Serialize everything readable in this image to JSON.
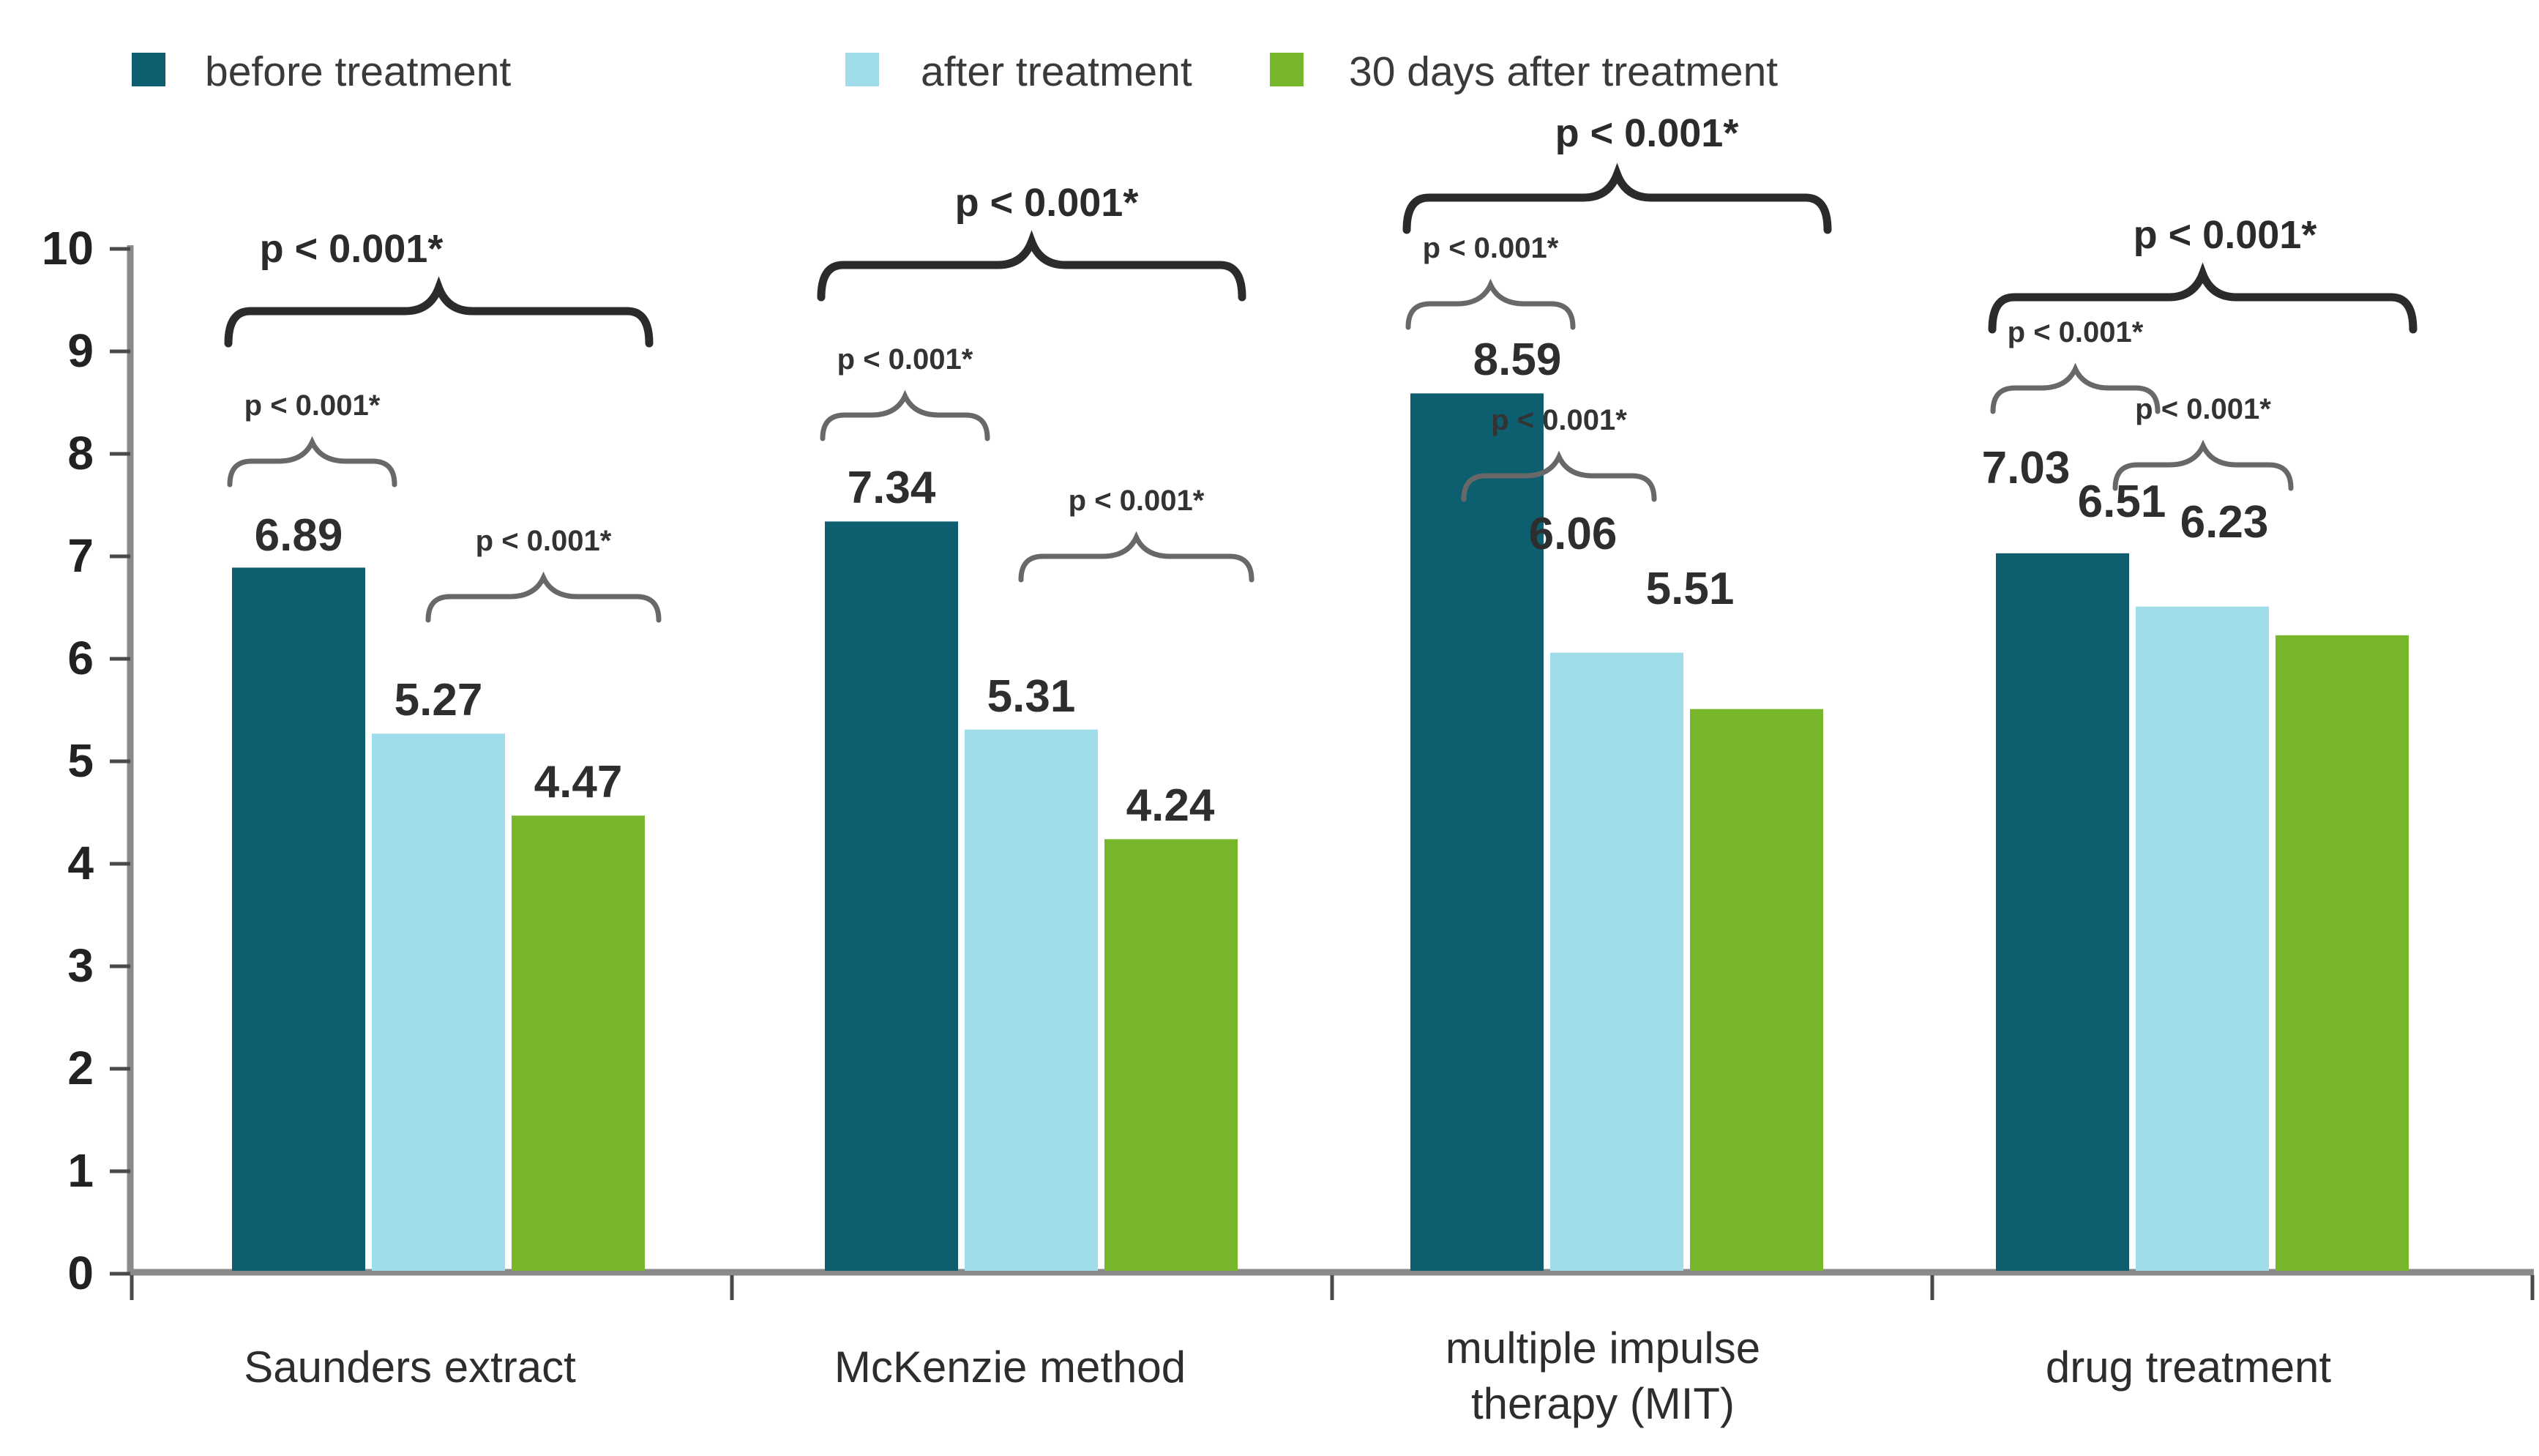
{
  "chart_data": {
    "type": "bar",
    "title": "",
    "categories": [
      "Saunders extract",
      "McKenzie method",
      "multiple impulse therapy (MIT)",
      "drug treatment"
    ],
    "series": [
      {
        "name": "before treatment",
        "color": "#0d5f70",
        "values": [
          6.89,
          7.34,
          8.59,
          7.03
        ]
      },
      {
        "name": "after treatment",
        "color": "#9edde9",
        "values": [
          5.27,
          5.31,
          6.06,
          6.51
        ]
      },
      {
        "name": "30 days after treatment",
        "color": "#78b72c",
        "values": [
          4.47,
          4.24,
          5.51,
          6.23
        ]
      }
    ],
    "ylim": [
      0,
      10
    ],
    "grid": false,
    "legend_position": "top-left",
    "p_annotations": [
      {
        "category": "Saunders extract",
        "before_vs_after": "p < 0.001*",
        "after_vs_30days": "p < 0.001*",
        "before_vs_30days": "p < 0.001*"
      },
      {
        "category": "McKenzie method",
        "before_vs_after": "p < 0.001*",
        "after_vs_30days": "p < 0.001*",
        "before_vs_30days": "p < 0.001*"
      },
      {
        "category": "multiple impulse therapy (MIT)",
        "before_vs_after": "p < 0.001*",
        "after_vs_30days": "p < 0.001*",
        "before_vs_30days": "p < 0.001*"
      },
      {
        "category": "drug treatment",
        "before_vs_after": "p < 0.001*",
        "after_vs_30days": "p < 0.001*",
        "before_vs_30days": "p < 0.001*"
      }
    ]
  },
  "y_axis": {
    "tick_labels": [
      "0",
      "1",
      "2",
      "3",
      "4",
      "5",
      "6",
      "7",
      "8",
      "9",
      "10"
    ]
  },
  "legend": [
    {
      "label": "before treatment",
      "color": "#0d5f70"
    },
    {
      "label": "after treatment",
      "color": "#9edde9"
    },
    {
      "label": "30 days after treatment",
      "color": "#78b72c"
    }
  ]
}
